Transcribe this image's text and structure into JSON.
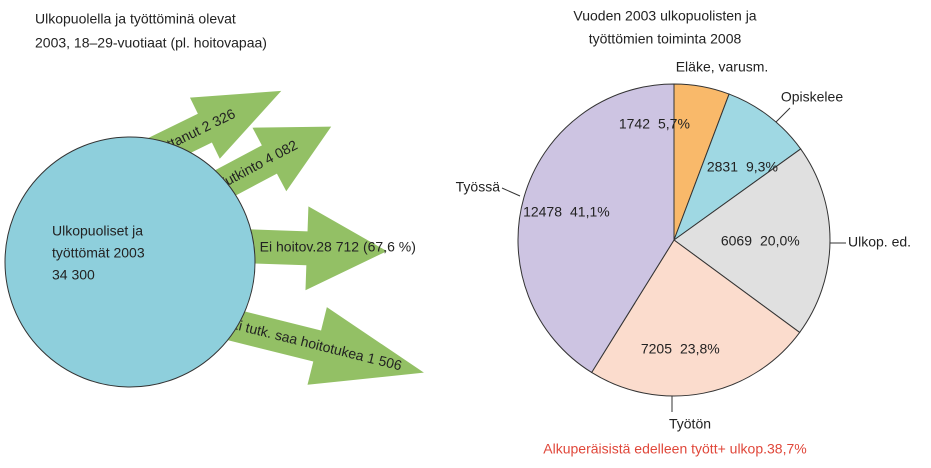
{
  "diagram": {
    "title": [
      "Ulkopuolella ja työttöminä olevat",
      "2003, 18–29-vuotiaat (pl. hoitovapaa)"
    ],
    "node": [
      "Ulkopuoliset ja",
      "työttömät 2003",
      "34 300"
    ],
    "arrows": [
      "Muuttanut 2 326",
      "Tutkinto 4 082",
      "Ei tutk. Ei hoitov.28 712 (67,6 %)",
      "Ei tutk. saa hoitotukea 1 506"
    ]
  },
  "chart_data": {
    "type": "pie",
    "title": [
      "Vuoden 2003 ulkopuolisten ja",
      "työttömien toiminta 2008"
    ],
    "categories": [
      "Eläke, varusm.",
      "Opiskelee",
      "Ulkop. ed.",
      "Työtön",
      "Työssä"
    ],
    "values": [
      1742,
      2831,
      6069,
      7205,
      12478
    ],
    "value_labels": [
      "1742",
      "2831",
      "6069",
      "7205",
      "12478"
    ],
    "percent_labels": [
      "5,7%",
      "9,3%",
      "20,0%",
      "23,8%",
      "41,1%"
    ],
    "colors": [
      "#f9b96a",
      "#9fd8e3",
      "#e0e0e0",
      "#fbdccd",
      "#cdc4e2"
    ],
    "footnote": "Alkuperäisistä edelleen tyött+ ulkop.38,7%"
  }
}
